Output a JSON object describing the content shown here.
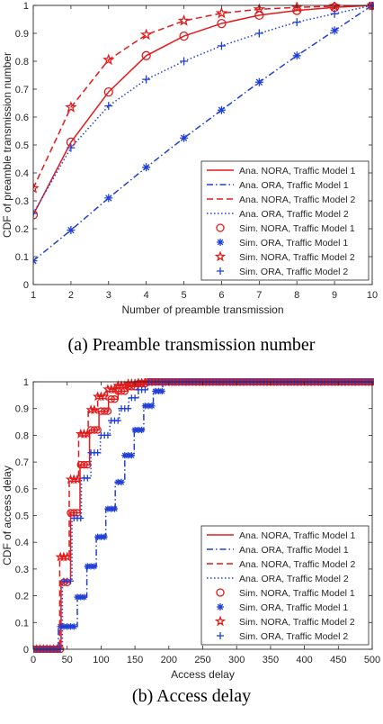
{
  "chart_data": [
    {
      "id": "a",
      "type": "line",
      "xlabel": "Number of preamble transmission",
      "ylabel": "CDF of preamble transmission number",
      "xlim": [
        1,
        10
      ],
      "ylim": [
        0,
        1
      ],
      "xticks": [
        1,
        2,
        3,
        4,
        5,
        6,
        7,
        8,
        9,
        10
      ],
      "yticks": [
        0,
        0.1,
        0.2,
        0.3,
        0.4,
        0.5,
        0.6,
        0.7,
        0.8,
        0.9,
        1
      ],
      "grid": false,
      "legend_position": "bottom-right",
      "legend": [
        "Ana. NORA, Traffic Model 1",
        "Ana. ORA, Traffic Model 1",
        "Ana. NORA, Traffic Model 2",
        "Ana. ORA, Traffic Model 2",
        "Sim. NORA, Traffic Model 1",
        "Sim. ORA, Traffic Model 1",
        "Sim. NORA, Traffic Model 2",
        "Sim. ORA, Traffic Model 2"
      ],
      "x": [
        1,
        2,
        3,
        4,
        5,
        6,
        7,
        8,
        9,
        10
      ],
      "series": [
        {
          "name": "Ana. NORA, Traffic Model 1",
          "color": "#e31a1c",
          "dash": "solid",
          "marker": "circle",
          "values": [
            0.25,
            0.51,
            0.69,
            0.82,
            0.89,
            0.935,
            0.965,
            0.982,
            0.993,
            1.0
          ]
        },
        {
          "name": "Ana. ORA, Traffic Model 1",
          "color": "#1f3fd6",
          "dash": "dashdot",
          "marker": "asterisk",
          "values": [
            0.085,
            0.195,
            0.31,
            0.42,
            0.525,
            0.625,
            0.725,
            0.82,
            0.91,
            1.0
          ]
        },
        {
          "name": "Ana. NORA, Traffic Model 2",
          "color": "#e31a1c",
          "dash": "dashed",
          "marker": "star",
          "values": [
            0.345,
            0.635,
            0.805,
            0.895,
            0.945,
            0.972,
            0.986,
            0.993,
            0.997,
            1.0
          ]
        },
        {
          "name": "Ana. ORA, Traffic Model 2",
          "color": "#1f3fd6",
          "dash": "dotted",
          "marker": "plus",
          "values": [
            0.255,
            0.49,
            0.64,
            0.735,
            0.8,
            0.855,
            0.9,
            0.94,
            0.97,
            1.0
          ]
        }
      ]
    },
    {
      "id": "b",
      "type": "line",
      "xlabel": "Access delay",
      "ylabel": "CDF of access delay",
      "xlim": [
        0,
        500
      ],
      "ylim": [
        0,
        1
      ],
      "xticks": [
        0,
        50,
        100,
        150,
        200,
        250,
        300,
        350,
        400,
        450,
        500
      ],
      "yticks": [
        0,
        0.1,
        0.2,
        0.3,
        0.4,
        0.5,
        0.6,
        0.7,
        0.8,
        0.9,
        1
      ],
      "grid": false,
      "legend_position": "bottom-right",
      "legend": [
        "Ana. NORA, Traffic Model 1",
        "Ana. ORA, Traffic Model 1",
        "Ana. NORA, Traffic Model 2",
        "Ana. ORA, Traffic Model 2",
        "Sim. NORA, Traffic Model 1",
        "Sim. ORA, Traffic Model 1",
        "Sim. NORA, Traffic Model 2",
        "Sim. ORA, Traffic Model 2"
      ],
      "steps_x": [
        0,
        23,
        37,
        51,
        65,
        79,
        93,
        107,
        121,
        135,
        149,
        163,
        177,
        191,
        205,
        500
      ],
      "series": [
        {
          "name": "Ana. NORA, Traffic Model 1",
          "color": "#e31a1c",
          "dash": "solid",
          "marker": "circle",
          "shift": 4,
          "levels": [
            0,
            0,
            0.25,
            0.51,
            0.69,
            0.82,
            0.89,
            0.935,
            0.965,
            0.982,
            0.993,
            1.0,
            1.0,
            1.0,
            1.0,
            1.0
          ]
        },
        {
          "name": "Ana. ORA, Traffic Model 1",
          "color": "#1f3fd6",
          "dash": "dashdot",
          "marker": "asterisk",
          "shift": 0,
          "levels": [
            0,
            0,
            0.085,
            0.085,
            0.195,
            0.31,
            0.42,
            0.525,
            0.625,
            0.725,
            0.82,
            0.91,
            0.965,
            1.0,
            1.0,
            1.0
          ]
        },
        {
          "name": "Ana. NORA, Traffic Model 2",
          "color": "#e31a1c",
          "dash": "dashed",
          "marker": "star",
          "shift": 2,
          "levels": [
            0,
            0,
            0.345,
            0.635,
            0.805,
            0.895,
            0.945,
            0.972,
            0.986,
            0.993,
            0.997,
            1.0,
            1.0,
            1.0,
            1.0,
            1.0
          ]
        },
        {
          "name": "Ana. ORA, Traffic Model 2",
          "color": "#1f3fd6",
          "dash": "dotted",
          "marker": "plus",
          "shift": 6,
          "levels": [
            0,
            0,
            0.255,
            0.49,
            0.64,
            0.735,
            0.8,
            0.855,
            0.9,
            0.94,
            0.97,
            1.0,
            1.0,
            1.0,
            1.0,
            1.0
          ]
        }
      ]
    }
  ],
  "captions": {
    "a": "(a)  Preamble transmission number",
    "b": "(b)  Access delay"
  }
}
